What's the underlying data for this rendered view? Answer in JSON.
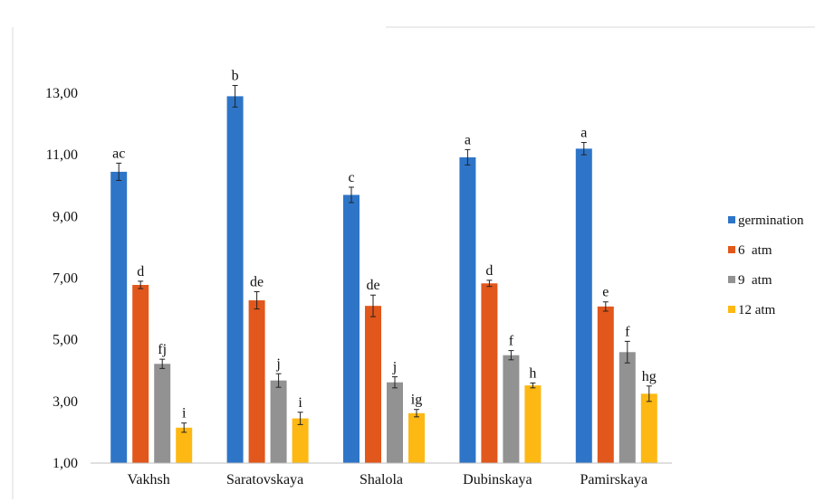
{
  "chart_data": {
    "type": "bar",
    "title": "",
    "xlabel": "",
    "ylabel": "",
    "ylim": [
      1,
      13
    ],
    "yticks": [
      "1,00",
      "3,00",
      "5,00",
      "7,00",
      "9,00",
      "11,00",
      "13,00"
    ],
    "ytick_values": [
      1,
      3,
      5,
      7,
      9,
      11,
      13
    ],
    "grid": false,
    "legend_position": "right",
    "categories": [
      "Vakhsh",
      "Saratovskaya",
      "Shalola",
      "Dubinskaya",
      "Pamirskaya"
    ],
    "series": [
      {
        "name": "germination",
        "color": "#2E75C8",
        "values": [
          10.45,
          12.9,
          9.7,
          10.92,
          11.2
        ],
        "errors": [
          0.28,
          0.35,
          0.25,
          0.25,
          0.2
        ],
        "labels": [
          "ac",
          "b",
          "c",
          "a",
          "a"
        ]
      },
      {
        "name": "6  atm",
        "color": "#E2571B",
        "values": [
          6.78,
          6.28,
          6.1,
          6.83,
          6.08
        ],
        "errors": [
          0.12,
          0.28,
          0.35,
          0.1,
          0.15
        ],
        "labels": [
          "d",
          "de",
          "de",
          "d",
          "e"
        ]
      },
      {
        "name": "9  atm",
        "color": "#929292",
        "values": [
          4.22,
          3.68,
          3.62,
          4.5,
          4.6
        ],
        "errors": [
          0.15,
          0.22,
          0.18,
          0.15,
          0.35
        ],
        "labels": [
          "fj",
          "j",
          "j",
          "f",
          "f"
        ]
      },
      {
        "name": "12 atm",
        "color": "#FDB813",
        "values": [
          2.15,
          2.45,
          2.62,
          3.52,
          3.25
        ],
        "errors": [
          0.15,
          0.2,
          0.12,
          0.08,
          0.25
        ],
        "labels": [
          "i",
          "i",
          "ig",
          "h",
          "hg"
        ]
      }
    ]
  }
}
